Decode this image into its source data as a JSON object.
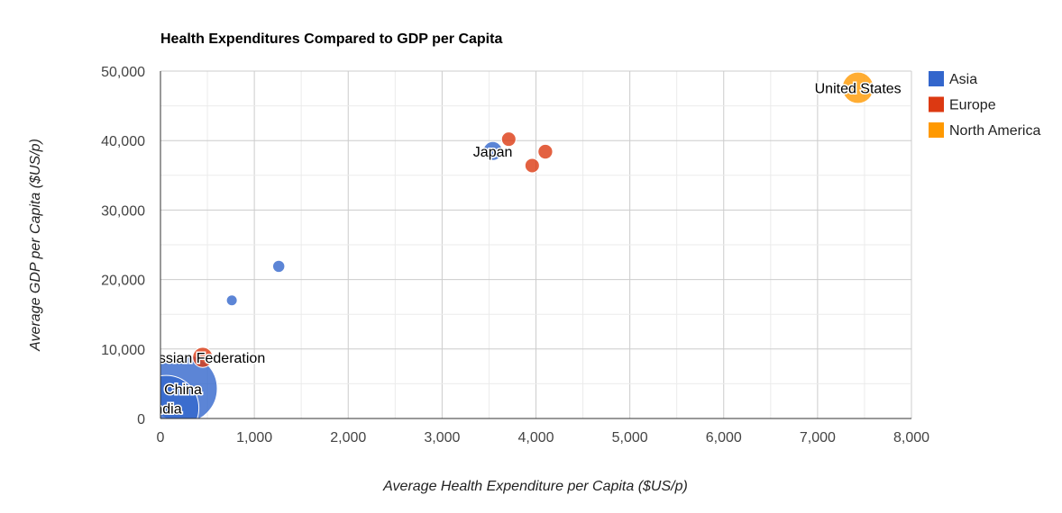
{
  "chart_data": {
    "type": "scatter",
    "title": "Health Expenditures Compared to GDP per Capita",
    "xlabel": "Average Health Expenditure per Capita ($US/p)",
    "ylabel": "Average GDP per Capita ($US/p)",
    "xlim": [
      0,
      8000
    ],
    "ylim": [
      0,
      50000
    ],
    "x_ticks": [
      0,
      1000,
      2000,
      3000,
      4000,
      5000,
      6000,
      7000,
      8000
    ],
    "y_ticks": [
      0,
      10000,
      20000,
      30000,
      40000,
      50000
    ],
    "x_tick_labels": [
      "0",
      "1,000",
      "2,000",
      "3,000",
      "4,000",
      "5,000",
      "6,000",
      "7,000",
      "8,000"
    ],
    "y_tick_labels": [
      "0",
      "10,000",
      "20,000",
      "30,000",
      "40,000",
      "50,000"
    ],
    "grid": true,
    "legend_position": "right",
    "series": [
      {
        "name": "Asia",
        "color": "#3366cc"
      },
      {
        "name": "Europe",
        "color": "#dc3912"
      },
      {
        "name": "North America",
        "color": "#ff9900"
      }
    ],
    "points": [
      {
        "label": "India",
        "series": "Asia",
        "x": 60,
        "y": 1500,
        "size": 1240
      },
      {
        "label": "China",
        "series": "Asia",
        "x": 240,
        "y": 4300,
        "size": 1350
      },
      {
        "label": "",
        "series": "Asia",
        "x": 760,
        "y": 17000,
        "size": 50
      },
      {
        "label": "",
        "series": "Asia",
        "x": 1260,
        "y": 21900,
        "size": 60
      },
      {
        "label": "Japan",
        "series": "Asia",
        "x": 3540,
        "y": 38500,
        "size": 127
      },
      {
        "label": "Russian Federation",
        "series": "Europe",
        "x": 450,
        "y": 8800,
        "size": 140
      },
      {
        "label": "",
        "series": "Europe",
        "x": 3710,
        "y": 40200,
        "size": 80
      },
      {
        "label": "",
        "series": "Europe",
        "x": 3960,
        "y": 36400,
        "size": 80
      },
      {
        "label": "",
        "series": "Europe",
        "x": 4100,
        "y": 38400,
        "size": 82
      },
      {
        "label": "United States",
        "series": "North America",
        "x": 7430,
        "y": 47600,
        "size": 310
      }
    ]
  }
}
